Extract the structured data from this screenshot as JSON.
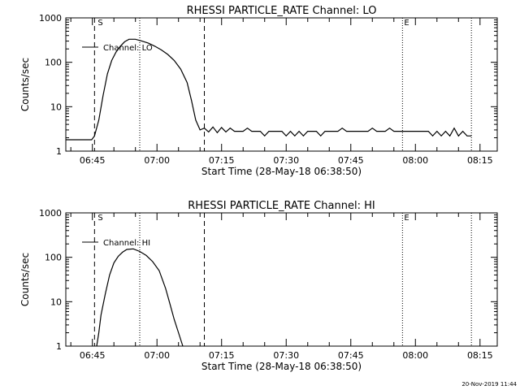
{
  "timestamp": "20-Nov-2019 11:44",
  "chart_data": [
    {
      "type": "line",
      "title": "RHESSI PARTICLE_RATE Channel: LO",
      "xlabel": "Start Time (28-May-18 06:38:50)",
      "ylabel": "Counts/sec",
      "x_ticks": [
        "06:45",
        "07:00",
        "07:15",
        "07:30",
        "07:45",
        "08:00",
        "08:15"
      ],
      "y_ticks": [
        "1",
        "10",
        "100",
        "1000"
      ],
      "y_scale": "log",
      "ylim": [
        1,
        1000
      ],
      "xlim": [
        "06:38:50",
        "08:19:00"
      ],
      "legend": "Channel: LO",
      "legend_position": "top-left",
      "markers": {
        "start_label": "S",
        "end_label": "E"
      },
      "dashed_lines": [
        "06:45:30",
        "07:11:00"
      ],
      "dotted_lines": [
        "06:56:00",
        "07:57:00",
        "08:13:00"
      ],
      "series": [
        {
          "name": "Channel: LO",
          "points": [
            [
              "06:38:50",
              1.8
            ],
            [
              "06:44:50",
              1.8
            ],
            [
              "06:45:30",
              2.2
            ],
            [
              "06:46:30",
              5
            ],
            [
              "06:47:30",
              18
            ],
            [
              "06:48:30",
              55
            ],
            [
              "06:49:30",
              110
            ],
            [
              "06:50:30",
              170
            ],
            [
              "06:51:30",
              230
            ],
            [
              "06:52:30",
              290
            ],
            [
              "06:53:30",
              330
            ],
            [
              "06:55:00",
              330
            ],
            [
              "06:56:30",
              300
            ],
            [
              "06:58:00",
              270
            ],
            [
              "06:59:30",
              230
            ],
            [
              "07:01:00",
              190
            ],
            [
              "07:02:30",
              150
            ],
            [
              "07:04:00",
              110
            ],
            [
              "07:05:30",
              70
            ],
            [
              "07:07:00",
              35
            ],
            [
              "07:08:00",
              14
            ],
            [
              "07:09:00",
              5
            ],
            [
              "07:10:00",
              3
            ],
            [
              "07:11:00",
              3.3
            ],
            [
              "07:12:00",
              2.7
            ],
            [
              "07:13:00",
              3.5
            ],
            [
              "07:14:00",
              2.6
            ],
            [
              "07:15:00",
              3.4
            ],
            [
              "07:16:00",
              2.7
            ],
            [
              "07:17:00",
              3.3
            ],
            [
              "07:18:00",
              2.8
            ],
            [
              "07:20:00",
              2.8
            ],
            [
              "07:21:00",
              3.3
            ],
            [
              "07:22:00",
              2.8
            ],
            [
              "07:24:00",
              2.8
            ],
            [
              "07:25:00",
              2.2
            ],
            [
              "07:26:00",
              2.8
            ],
            [
              "07:29:00",
              2.8
            ],
            [
              "07:30:00",
              2.2
            ],
            [
              "07:31:00",
              2.8
            ],
            [
              "07:32:00",
              2.2
            ],
            [
              "07:33:00",
              2.8
            ],
            [
              "07:34:00",
              2.2
            ],
            [
              "07:35:00",
              2.8
            ],
            [
              "07:37:00",
              2.8
            ],
            [
              "07:38:00",
              2.2
            ],
            [
              "07:39:00",
              2.8
            ],
            [
              "07:42:00",
              2.8
            ],
            [
              "07:43:00",
              3.3
            ],
            [
              "07:44:00",
              2.8
            ],
            [
              "07:49:00",
              2.8
            ],
            [
              "07:50:00",
              3.3
            ],
            [
              "07:51:00",
              2.8
            ],
            [
              "07:53:00",
              2.8
            ],
            [
              "07:54:00",
              3.3
            ],
            [
              "07:55:00",
              2.8
            ],
            [
              "08:03:00",
              2.8
            ],
            [
              "08:04:00",
              2.2
            ],
            [
              "08:05:00",
              2.8
            ],
            [
              "08:06:00",
              2.2
            ],
            [
              "08:07:00",
              2.8
            ],
            [
              "08:08:00",
              2.2
            ],
            [
              "08:09:00",
              3.3
            ],
            [
              "08:10:00",
              2.2
            ],
            [
              "08:11:00",
              2.8
            ],
            [
              "08:12:00",
              2.2
            ],
            [
              "08:13:00",
              2.2
            ]
          ]
        }
      ]
    },
    {
      "type": "line",
      "title": "RHESSI PARTICLE_RATE Channel: HI",
      "xlabel": "Start Time (28-May-18 06:38:50)",
      "ylabel": "Counts/sec",
      "x_ticks": [
        "06:45",
        "07:00",
        "07:15",
        "07:30",
        "07:45",
        "08:00",
        "08:15"
      ],
      "y_ticks": [
        "1",
        "10",
        "100",
        "1000"
      ],
      "y_scale": "log",
      "ylim": [
        1,
        1000
      ],
      "xlim": [
        "06:38:50",
        "08:19:00"
      ],
      "legend": "Channel: HI",
      "legend_position": "top-left",
      "markers": {
        "start_label": "S",
        "end_label": "E"
      },
      "dashed_lines": [
        "06:45:30",
        "07:11:00"
      ],
      "dotted_lines": [
        "06:56:00",
        "07:57:00",
        "08:13:00"
      ],
      "series": [
        {
          "name": "Channel: HI",
          "points": [
            [
              "06:46:00",
              1
            ],
            [
              "06:46:30",
              2
            ],
            [
              "06:47:00",
              5
            ],
            [
              "06:48:00",
              15
            ],
            [
              "06:49:00",
              40
            ],
            [
              "06:50:00",
              75
            ],
            [
              "06:51:00",
              105
            ],
            [
              "06:52:00",
              130
            ],
            [
              "06:53:00",
              150
            ],
            [
              "06:54:30",
              155
            ],
            [
              "06:56:00",
              135
            ],
            [
              "06:57:30",
              110
            ],
            [
              "06:59:00",
              80
            ],
            [
              "07:00:30",
              50
            ],
            [
              "07:02:00",
              20
            ],
            [
              "07:03:00",
              9
            ],
            [
              "07:04:00",
              4
            ],
            [
              "07:05:00",
              2
            ],
            [
              "07:06:00",
              1
            ]
          ]
        }
      ]
    }
  ]
}
